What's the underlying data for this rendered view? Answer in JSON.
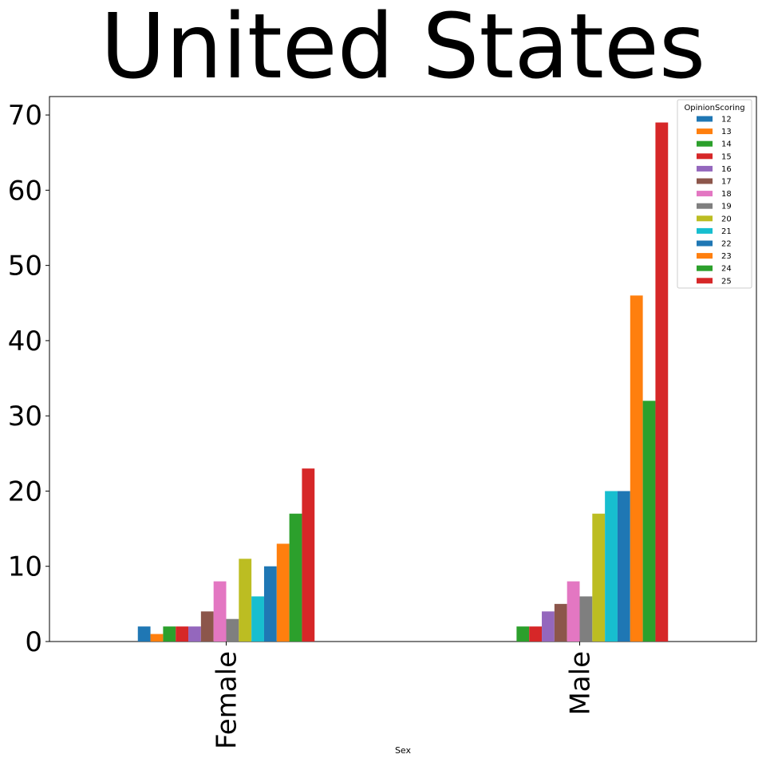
{
  "chart_data": {
    "type": "bar",
    "title": "United States",
    "xlabel": "Sex",
    "ylabel": "",
    "categories": [
      "Female",
      "Male"
    ],
    "ylim": [
      0,
      72.45
    ],
    "yticks": [
      "0",
      "10",
      "20",
      "30",
      "40",
      "50",
      "60",
      "70"
    ],
    "grid": false,
    "legend": {
      "title": "OpinionScoring",
      "position": "top-right"
    },
    "series": [
      {
        "name": "12",
        "color": "#1f77b4",
        "values": [
          2,
          0
        ]
      },
      {
        "name": "13",
        "color": "#ff7f0e",
        "values": [
          1,
          0
        ]
      },
      {
        "name": "14",
        "color": "#2ca02c",
        "values": [
          2,
          2
        ]
      },
      {
        "name": "15",
        "color": "#d62728",
        "values": [
          2,
          2
        ]
      },
      {
        "name": "16",
        "color": "#9467bd",
        "values": [
          2,
          4
        ]
      },
      {
        "name": "17",
        "color": "#8c564b",
        "values": [
          4,
          5
        ]
      },
      {
        "name": "18",
        "color": "#e377c2",
        "values": [
          8,
          8
        ]
      },
      {
        "name": "19",
        "color": "#7f7f7f",
        "values": [
          3,
          6
        ]
      },
      {
        "name": "20",
        "color": "#bcbd22",
        "values": [
          11,
          17
        ]
      },
      {
        "name": "21",
        "color": "#17becf",
        "values": [
          6,
          20
        ]
      },
      {
        "name": "22",
        "color": "#1f77b4",
        "values": [
          10,
          20
        ]
      },
      {
        "name": "23",
        "color": "#ff7f0e",
        "values": [
          13,
          46
        ]
      },
      {
        "name": "24",
        "color": "#2ca02c",
        "values": [
          17,
          32
        ]
      },
      {
        "name": "25",
        "color": "#d62728",
        "values": [
          23,
          69
        ]
      }
    ]
  }
}
